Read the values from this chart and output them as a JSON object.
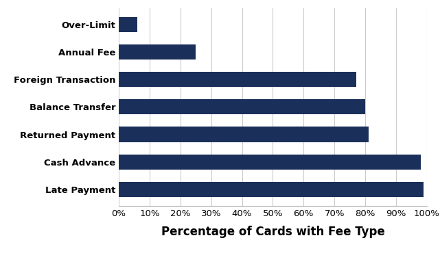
{
  "categories": [
    "Late Payment",
    "Cash Advance",
    "Returned Payment",
    "Balance Transfer",
    "Foreign Transaction",
    "Annual Fee",
    "Over-Limit"
  ],
  "values": [
    0.99,
    0.98,
    0.81,
    0.8,
    0.77,
    0.25,
    0.06
  ],
  "bar_color": "#1a2f5a",
  "xlabel": "Percentage of Cards with Fee Type",
  "xlim": [
    0,
    1.0
  ],
  "xtick_values": [
    0.0,
    0.1,
    0.2,
    0.3,
    0.4,
    0.5,
    0.6,
    0.7,
    0.8,
    0.9,
    1.0
  ],
  "grid_color": "#cccccc",
  "background_color": "#ffffff",
  "xlabel_fontsize": 12,
  "tick_fontsize": 9.5,
  "bar_height": 0.55
}
